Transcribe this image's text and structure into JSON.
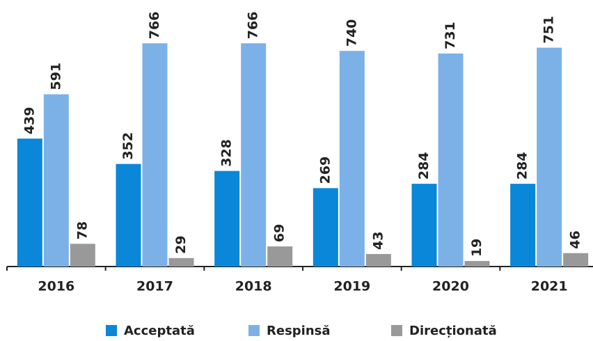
{
  "chart_data": {
    "type": "bar",
    "categories": [
      "2016",
      "2017",
      "2018",
      "2019",
      "2020",
      "2021"
    ],
    "series": [
      {
        "name": "Acceptată",
        "color": "#0a87d8",
        "values": [
          439,
          352,
          328,
          269,
          284,
          284
        ]
      },
      {
        "name": "Respinsă",
        "color": "#7cb1e8",
        "values": [
          591,
          766,
          766,
          740,
          731,
          751
        ]
      },
      {
        "name": "Direcționată",
        "color": "#999999",
        "values": [
          78,
          29,
          69,
          43,
          19,
          46
        ]
      }
    ],
    "ylim": [
      0,
      800
    ]
  }
}
